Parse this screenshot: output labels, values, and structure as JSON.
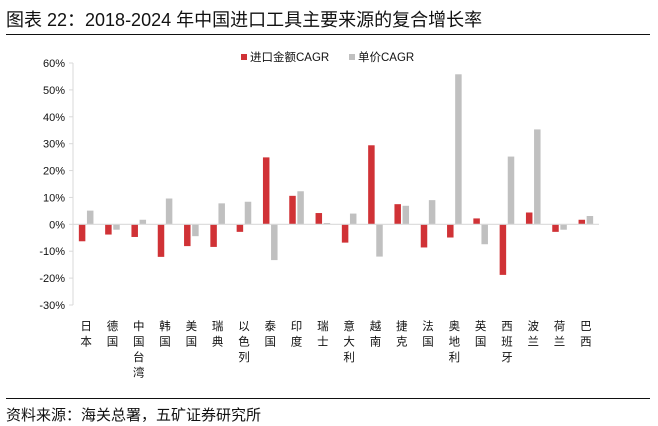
{
  "title": "图表 22：2018-2024 年中国进口工具主要来源的复合增长率",
  "source": "资料来源：海关总署，五矿证券研究所",
  "colors": {
    "import": "#d03236",
    "price": "#c0c0c0"
  },
  "chart_data": {
    "type": "bar",
    "title": "2018-2024 年中国进口工具主要来源的复合增长率",
    "categories": [
      "日本",
      "德国",
      "中国台湾",
      "韩国",
      "美国",
      "瑞典",
      "以色列",
      "泰国",
      "印度",
      "瑞士",
      "意大利",
      "越南",
      "捷克",
      "法国",
      "奥地利",
      "英国",
      "西班牙",
      "波兰",
      "荷兰",
      "巴西"
    ],
    "series": [
      {
        "name": "进口金额CAGR",
        "values": [
          -6.3,
          -3.8,
          -4.7,
          -12.1,
          -8.1,
          -8.4,
          -2.8,
          24.9,
          10.6,
          4.2,
          -6.8,
          29.4,
          7.5,
          -8.6,
          -4.9,
          2.2,
          -18.8,
          4.4,
          -2.8,
          1.7
        ]
      },
      {
        "name": "单价CAGR",
        "values": [
          5.1,
          -2.0,
          1.7,
          9.6,
          -4.4,
          7.8,
          8.4,
          -13.3,
          12.3,
          0.5,
          4.0,
          -12.0,
          6.9,
          9.0,
          55.8,
          -7.4,
          25.2,
          35.3,
          -2.0,
          3.1
        ]
      }
    ],
    "ylim": [
      -30,
      60
    ],
    "yticks": [
      -30,
      -20,
      -10,
      0,
      10,
      20,
      30,
      40,
      50,
      60
    ],
    "ytick_format": "%",
    "legend": "top-center",
    "grid": false,
    "xlabel": "",
    "ylabel": ""
  }
}
